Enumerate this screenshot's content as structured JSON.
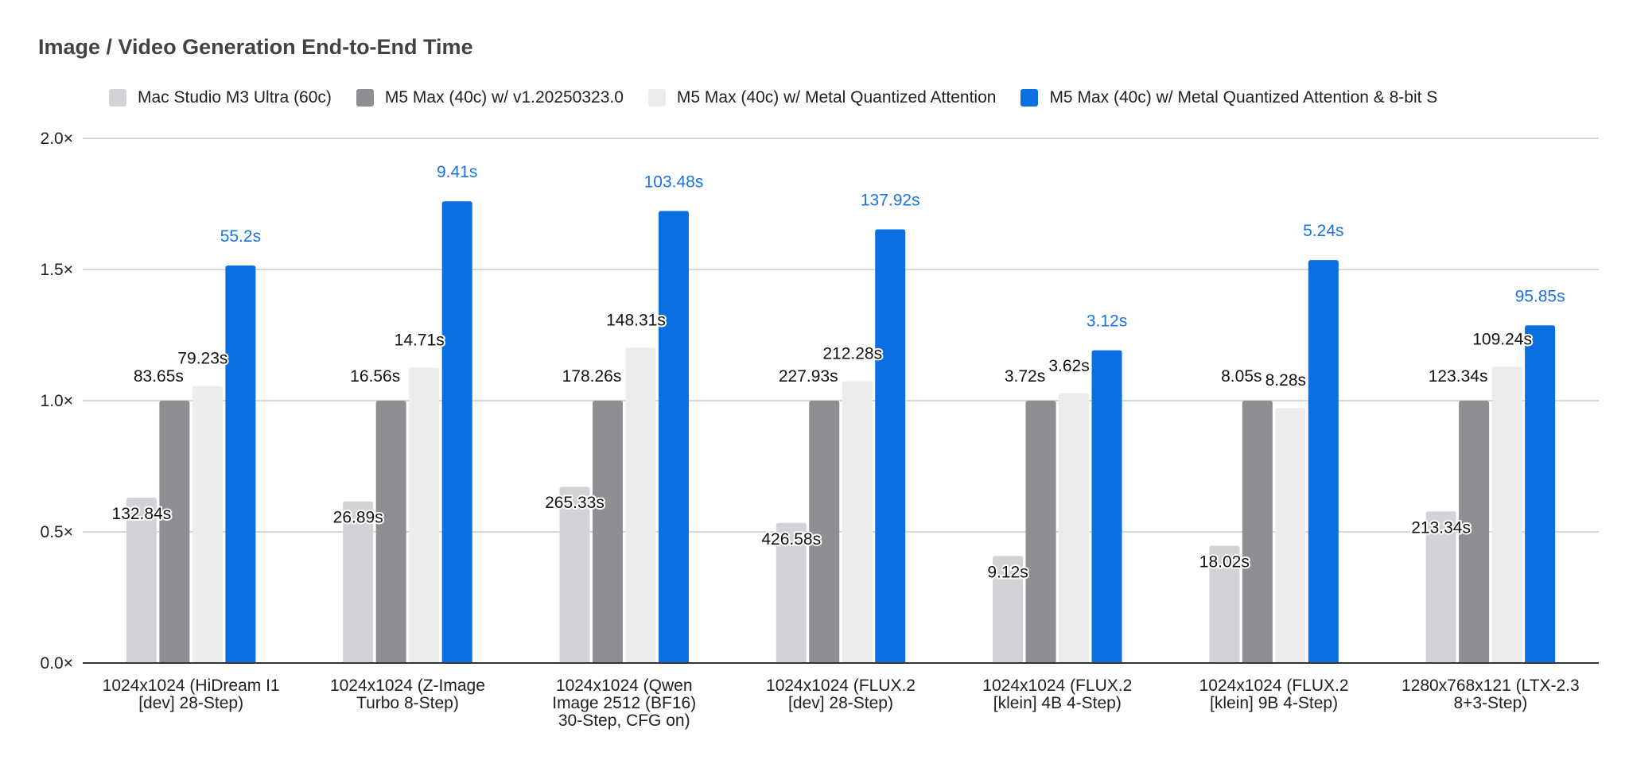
{
  "chart_data": {
    "type": "bar",
    "title": "Image / Video Generation End-to-End Time",
    "xlabel": "",
    "ylabel": "",
    "ylim": [
      0,
      2.0
    ],
    "yticks": [
      "0.0×",
      "0.5×",
      "1.0×",
      "1.5×",
      "2.0×"
    ],
    "grid": true,
    "legend_position": "top",
    "categories": [
      [
        "1024x1024 (HiDream I1",
        "[dev] 28-Step)"
      ],
      [
        "1024x1024 (Z-Image",
        "Turbo 8-Step)"
      ],
      [
        "1024x1024 (Qwen",
        "Image 2512 (BF16)",
        "30-Step, CFG on)"
      ],
      [
        "1024x1024 (FLUX.2",
        "[dev] 28-Step)"
      ],
      [
        "1024x1024 (FLUX.2",
        "[klein] 4B 4-Step)"
      ],
      [
        "1024x1024 (FLUX.2",
        "[klein] 9B 4-Step)"
      ],
      [
        "1280x768x121 (LTX-2.3",
        "8+3-Step)"
      ]
    ],
    "series": [
      {
        "name": "Mac Studio M3 Ultra (60c)",
        "color": "#d3d3d7",
        "values": [
          0.63,
          0.616,
          0.672,
          0.534,
          0.408,
          0.447,
          0.578
        ],
        "labels": [
          "132.84s",
          "26.89s",
          "265.33s",
          "426.58s",
          "9.12s",
          "18.02s",
          "213.34s"
        ]
      },
      {
        "name": "M5 Max (40c) w/ v1.20250323.0",
        "color": "#8e8e93",
        "values": [
          1.0,
          1.0,
          1.0,
          1.0,
          1.0,
          1.0,
          1.0
        ],
        "labels": [
          "83.65s",
          "16.56s",
          "178.26s",
          "227.93s",
          "3.72s",
          "8.05s",
          "123.34s"
        ]
      },
      {
        "name": "M5 Max (40c) w/ Metal Quantized Attention",
        "color": "#ececec",
        "values": [
          1.056,
          1.126,
          1.202,
          1.074,
          1.028,
          0.972,
          1.129
        ],
        "labels": [
          "79.23s",
          "14.71s",
          "148.31s",
          "212.28s",
          "3.62s",
          "8.28s",
          "109.24s"
        ]
      },
      {
        "name": "M5 Max (40c) w/ Metal Quantized Attention & 8-bit S",
        "color": "#0a70e2",
        "label_color": "#1a73e8",
        "values": [
          1.515,
          1.76,
          1.723,
          1.653,
          1.192,
          1.536,
          1.287
        ],
        "labels": [
          "55.2s",
          "9.41s",
          "103.48s",
          "137.92s",
          "3.12s",
          "5.24s",
          "95.85s"
        ]
      }
    ]
  }
}
